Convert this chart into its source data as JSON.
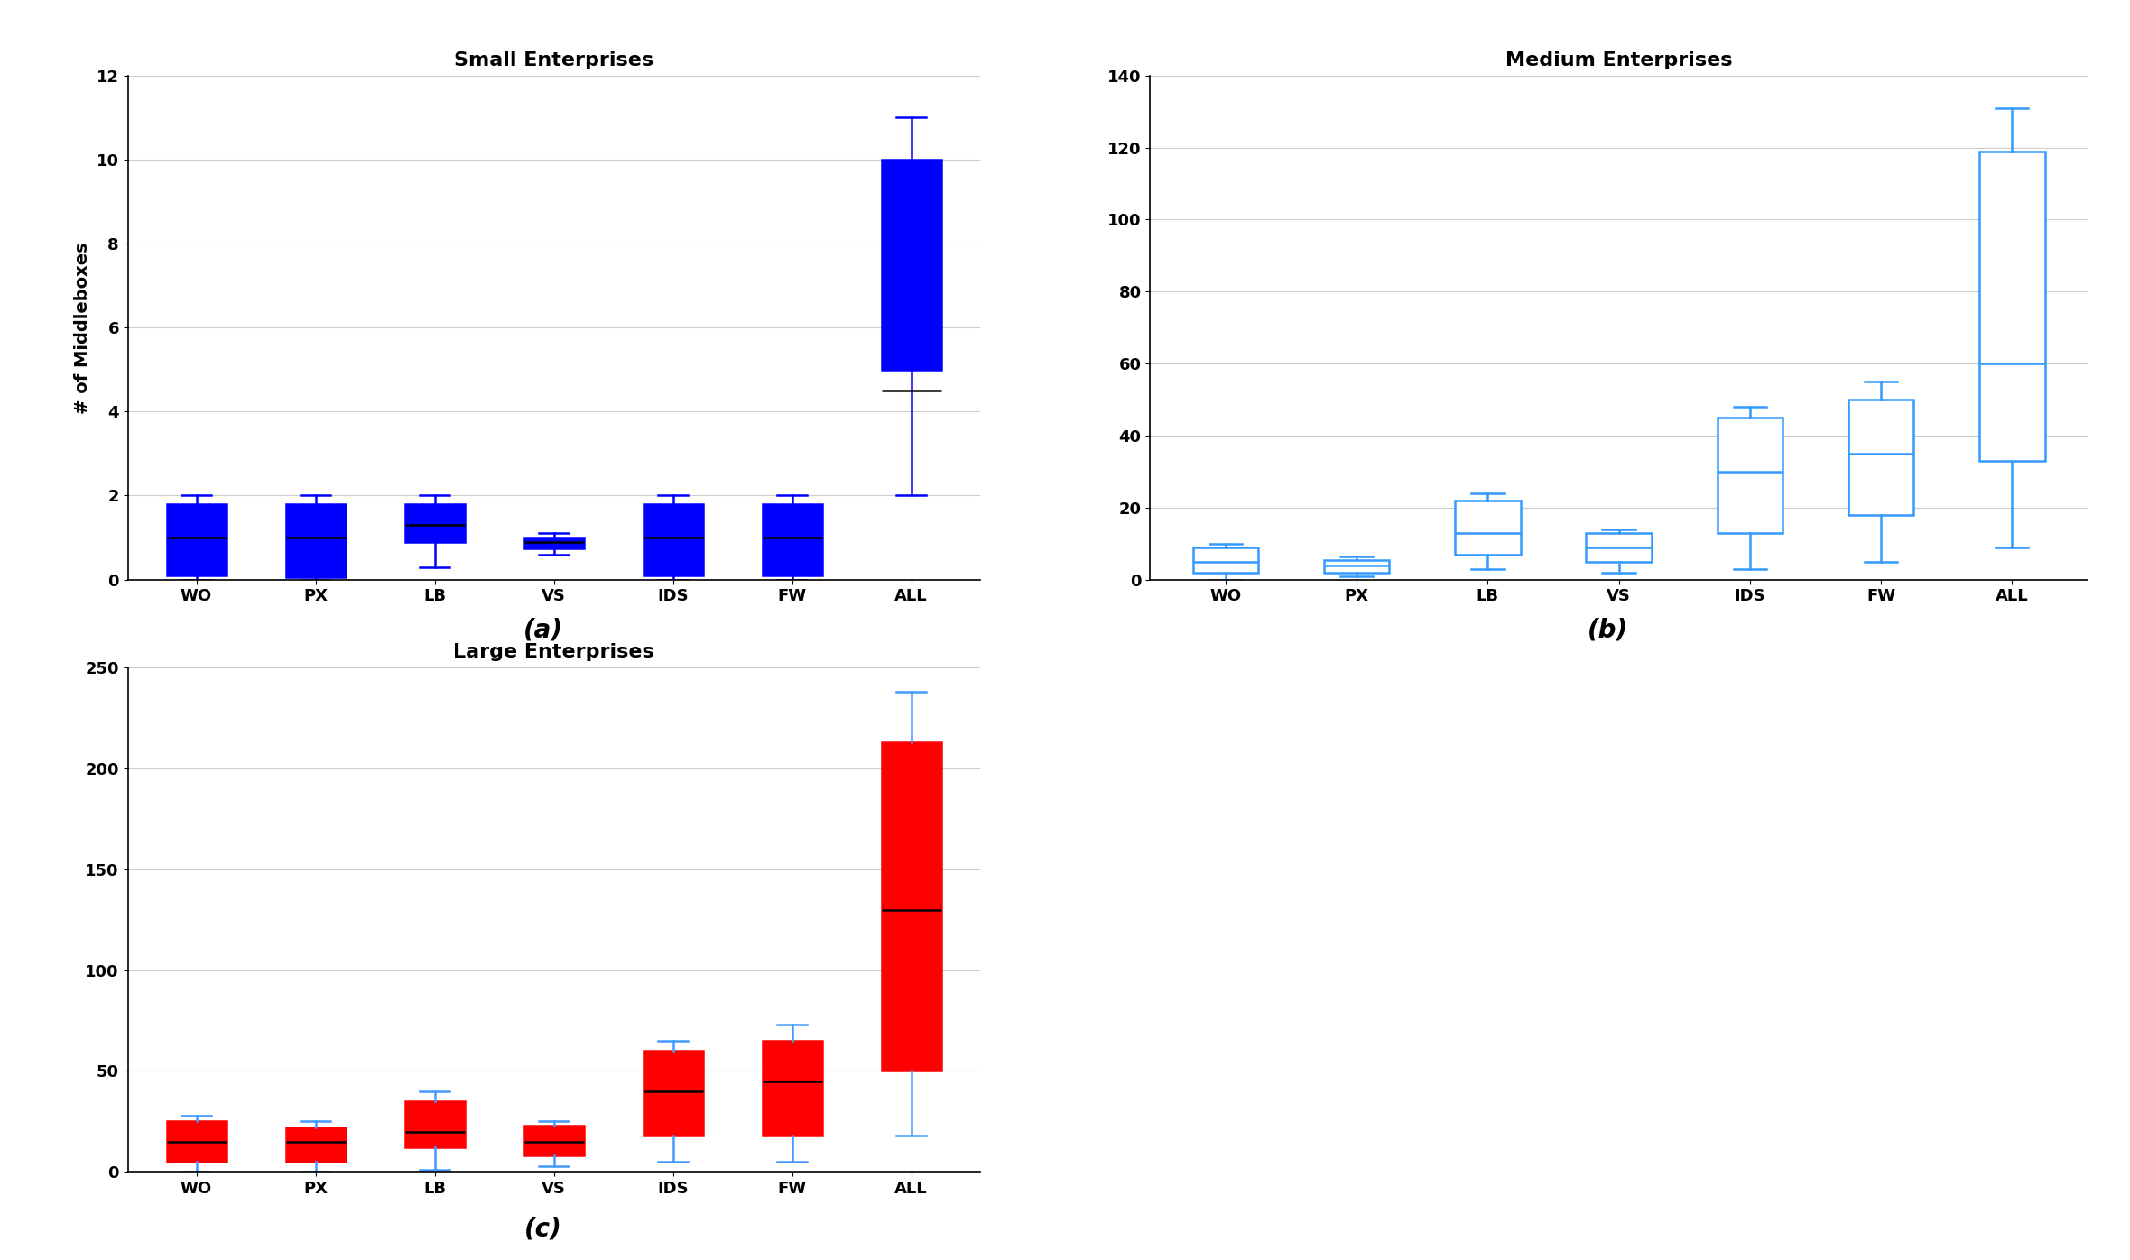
{
  "categories": [
    "WO",
    "PX",
    "LB",
    "VS",
    "IDS",
    "FW",
    "ALL"
  ],
  "small": {
    "title": "Small Enterprises",
    "color": "#0000FF",
    "filled": true,
    "ylim": [
      0,
      12
    ],
    "yticks": [
      0,
      2,
      4,
      6,
      8,
      10,
      12
    ],
    "ylabel": "# of Middleboxes",
    "boxes": [
      {
        "whislo": 0.0,
        "q1": 0.1,
        "med": 1.0,
        "q3": 1.8,
        "whishi": 2.0
      },
      {
        "whislo": 0.0,
        "q1": 0.05,
        "med": 1.0,
        "q3": 1.8,
        "whishi": 2.0
      },
      {
        "whislo": 0.3,
        "q1": 0.9,
        "med": 1.3,
        "q3": 1.8,
        "whishi": 2.0
      },
      {
        "whislo": 0.6,
        "q1": 0.75,
        "med": 0.9,
        "q3": 1.0,
        "whishi": 1.1
      },
      {
        "whislo": 0.0,
        "q1": 0.1,
        "med": 1.0,
        "q3": 1.8,
        "whishi": 2.0
      },
      {
        "whislo": 0.0,
        "q1": 0.1,
        "med": 1.0,
        "q3": 1.8,
        "whishi": 2.0
      },
      {
        "whislo": 2.0,
        "q1": 5.0,
        "med": 4.5,
        "q3": 10.0,
        "whishi": 11.0
      }
    ]
  },
  "medium": {
    "title": "Medium Enterprises",
    "color": "#3399FF",
    "filled": false,
    "ylim": [
      0,
      140
    ],
    "yticks": [
      0,
      20,
      40,
      60,
      80,
      100,
      120,
      140
    ],
    "ylabel": "",
    "boxes": [
      {
        "whislo": 0.0,
        "q1": 2.0,
        "med": 5.0,
        "q3": 9.0,
        "whishi": 10.0
      },
      {
        "whislo": 1.0,
        "q1": 2.0,
        "med": 4.0,
        "q3": 5.5,
        "whishi": 6.5
      },
      {
        "whislo": 3.0,
        "q1": 7.0,
        "med": 13.0,
        "q3": 22.0,
        "whishi": 24.0
      },
      {
        "whislo": 2.0,
        "q1": 5.0,
        "med": 9.0,
        "q3": 13.0,
        "whishi": 14.0
      },
      {
        "whislo": 3.0,
        "q1": 13.0,
        "med": 30.0,
        "q3": 45.0,
        "whishi": 48.0
      },
      {
        "whislo": 5.0,
        "q1": 18.0,
        "med": 35.0,
        "q3": 50.0,
        "whishi": 55.0
      },
      {
        "whislo": 9.0,
        "q1": 33.0,
        "med": 60.0,
        "q3": 119.0,
        "whishi": 131.0
      }
    ]
  },
  "large": {
    "title": "Large Enterprises",
    "color": "#FF0000",
    "whisker_color": "#4499FF",
    "filled": true,
    "ylim": [
      0,
      250
    ],
    "yticks": [
      0,
      50,
      100,
      150,
      200,
      250
    ],
    "ylabel": "",
    "boxes": [
      {
        "whislo": 0.0,
        "q1": 5.0,
        "med": 15.0,
        "q3": 25.0,
        "whishi": 28.0
      },
      {
        "whislo": 0.0,
        "q1": 5.0,
        "med": 15.0,
        "q3": 22.0,
        "whishi": 25.0
      },
      {
        "whislo": 1.0,
        "q1": 12.0,
        "med": 20.0,
        "q3": 35.0,
        "whishi": 40.0
      },
      {
        "whislo": 3.0,
        "q1": 8.0,
        "med": 15.0,
        "q3": 23.0,
        "whishi": 25.0
      },
      {
        "whislo": 5.0,
        "q1": 18.0,
        "med": 40.0,
        "q3": 60.0,
        "whishi": 65.0
      },
      {
        "whislo": 5.0,
        "q1": 18.0,
        "med": 45.0,
        "q3": 65.0,
        "whishi": 73.0
      },
      {
        "whislo": 18.0,
        "q1": 50.0,
        "med": 130.0,
        "q3": 213.0,
        "whishi": 238.0
      }
    ]
  },
  "subplot_labels": [
    "(a)",
    "(b)",
    "(c)"
  ],
  "background_color": "#FFFFFF",
  "grid_color": "#CCCCCC",
  "title_fontsize": 16,
  "label_fontsize": 14,
  "tick_fontsize": 13,
  "caption_fontsize": 20
}
